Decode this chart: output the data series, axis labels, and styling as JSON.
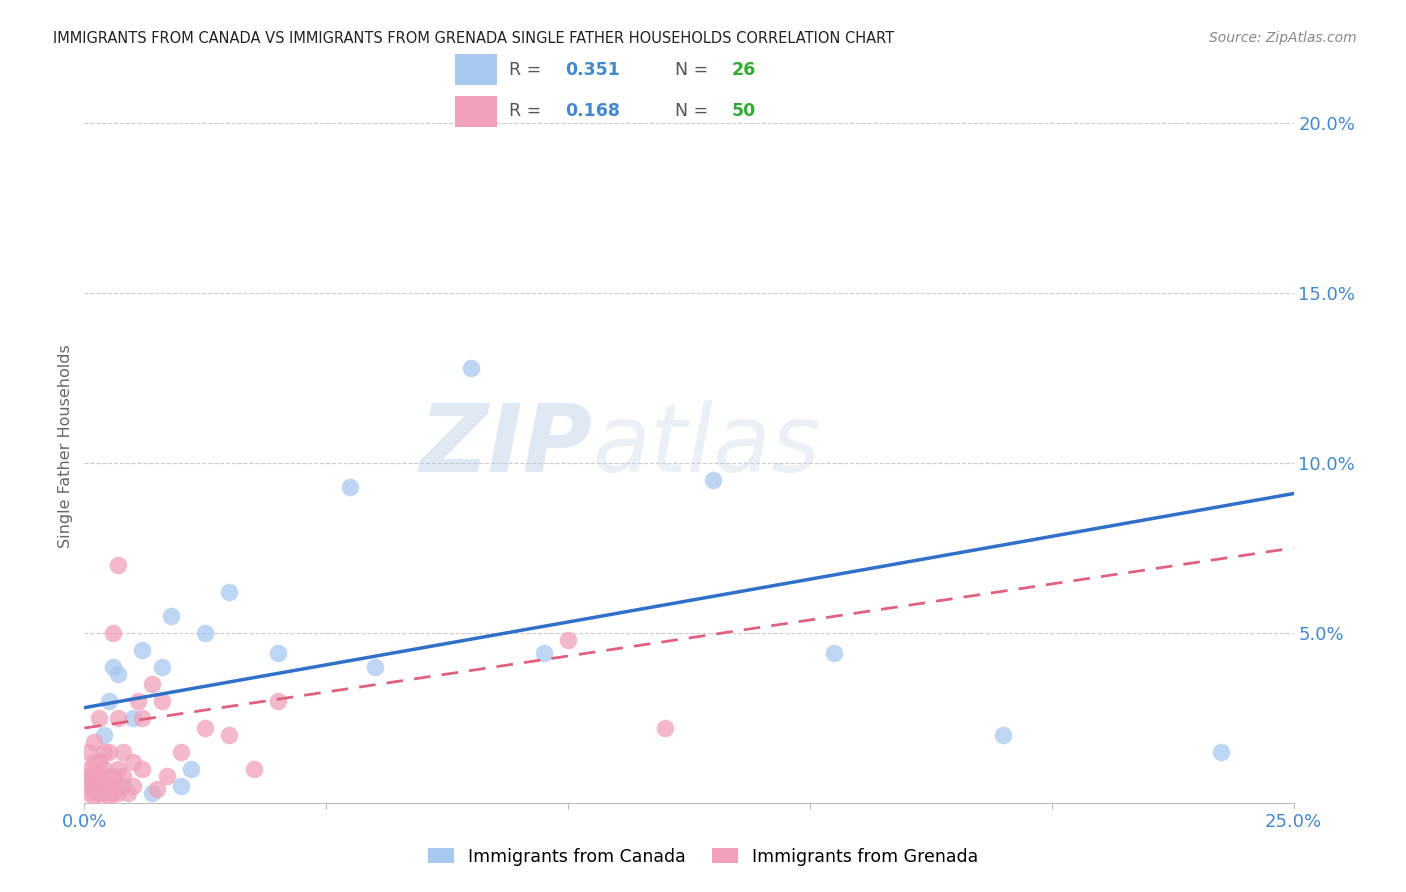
{
  "title": "IMMIGRANTS FROM CANADA VS IMMIGRANTS FROM GRENADA SINGLE FATHER HOUSEHOLDS CORRELATION CHART",
  "source": "Source: ZipAtlas.com",
  "ylabel": "Single Father Households",
  "xlim": [
    0,
    0.25
  ],
  "ylim": [
    0,
    0.21
  ],
  "canada_color": "#a8c8f0",
  "grenada_color": "#f0a0b8",
  "canada_line_color": "#3070c8",
  "grenada_line_color": "#e06080",
  "legend_R_canada": "0.351",
  "legend_N_canada": "26",
  "legend_R_grenada": "0.168",
  "legend_N_grenada": "50",
  "canada_x": [
    0.001,
    0.002,
    0.003,
    0.004,
    0.005,
    0.006,
    0.007,
    0.008,
    0.01,
    0.012,
    0.014,
    0.016,
    0.018,
    0.02,
    0.022,
    0.025,
    0.03,
    0.04,
    0.055,
    0.06,
    0.08,
    0.095,
    0.13,
    0.155,
    0.19,
    0.235
  ],
  "canada_y": [
    0.008,
    0.005,
    0.003,
    0.02,
    0.03,
    0.04,
    0.038,
    0.005,
    0.025,
    0.045,
    0.003,
    0.04,
    0.055,
    0.005,
    0.01,
    0.05,
    0.062,
    0.044,
    0.093,
    0.04,
    0.128,
    0.044,
    0.095,
    0.044,
    0.02,
    0.015
  ],
  "grenada_x": [
    0.001,
    0.001,
    0.001,
    0.001,
    0.001,
    0.002,
    0.002,
    0.002,
    0.002,
    0.002,
    0.003,
    0.003,
    0.003,
    0.003,
    0.003,
    0.004,
    0.004,
    0.004,
    0.004,
    0.005,
    0.005,
    0.005,
    0.005,
    0.006,
    0.006,
    0.006,
    0.007,
    0.007,
    0.007,
    0.007,
    0.007,
    0.008,
    0.008,
    0.009,
    0.01,
    0.01,
    0.011,
    0.012,
    0.012,
    0.014,
    0.015,
    0.016,
    0.017,
    0.02,
    0.025,
    0.03,
    0.035,
    0.04,
    0.1,
    0.12
  ],
  "grenada_y": [
    0.01,
    0.005,
    0.003,
    0.008,
    0.015,
    0.002,
    0.005,
    0.008,
    0.012,
    0.018,
    0.003,
    0.005,
    0.008,
    0.012,
    0.025,
    0.003,
    0.006,
    0.01,
    0.015,
    0.002,
    0.005,
    0.008,
    0.015,
    0.003,
    0.008,
    0.05,
    0.005,
    0.01,
    0.025,
    0.07,
    0.003,
    0.008,
    0.015,
    0.003,
    0.005,
    0.012,
    0.03,
    0.01,
    0.025,
    0.035,
    0.004,
    0.03,
    0.008,
    0.015,
    0.022,
    0.02,
    0.01,
    0.03,
    0.048,
    0.022
  ],
  "watermark_zip": "ZIP",
  "watermark_atlas": "atlas",
  "background_color": "#ffffff",
  "grid_color": "#cccccc",
  "title_color": "#222222",
  "axis_label_color": "#666666",
  "tick_label_color": "#4488cc",
  "canada_R": 0.351,
  "grenada_R": 0.168,
  "canada_trendline_x0": 0.0,
  "canada_trendline_y0": 0.028,
  "canada_trendline_x1": 0.25,
  "canada_trendline_y1": 0.091,
  "grenada_trendline_x0": 0.0,
  "grenada_trendline_y0": 0.022,
  "grenada_trendline_x1": 0.25,
  "grenada_trendline_y1": 0.075
}
